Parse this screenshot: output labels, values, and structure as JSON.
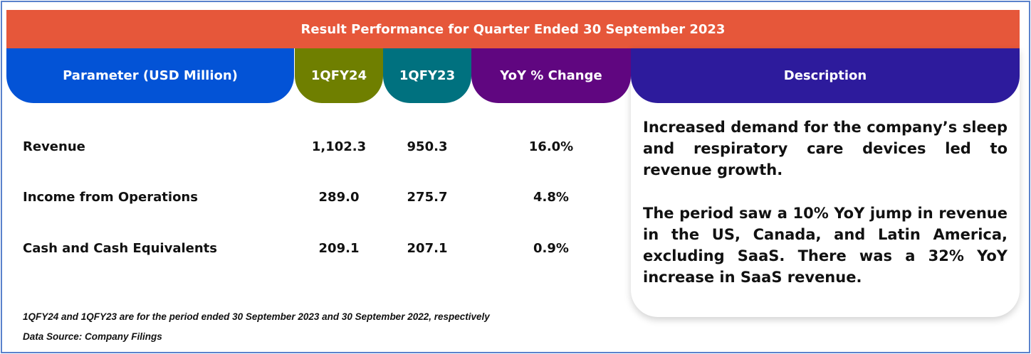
{
  "title": "Result Performance for Quarter Ended 30 September 2023",
  "headers": {
    "parameter": "Parameter (USD Million)",
    "fy24": "1QFY24",
    "fy23": "1QFY23",
    "yoy": "YoY % Change",
    "description": "Description"
  },
  "rows": [
    {
      "label": "Revenue",
      "fy24": "1,102.3",
      "fy23": "950.3",
      "yoy": "16.0%"
    },
    {
      "label": "Income from Operations",
      "fy24": "289.0",
      "fy23": "275.7",
      "yoy": "4.8%"
    },
    {
      "label": "Cash and Cash Equivalents",
      "fy24": "209.1",
      "fy23": "207.1",
      "yoy": "0.9%"
    }
  ],
  "description": {
    "p1": "Increased demand for the company’s sleep and respiratory care devices led to revenue growth.",
    "p2": "The period saw a 10% YoY jump in revenue in the US, Canada, and Latin America, excluding SaaS. There was a 32% YoY increase in SaaS revenue."
  },
  "footnotes": {
    "note": "1QFY24 and 1QFY23 are for the period ended 30 September 2023 and 30 September 2022, respectively",
    "source": "Data Source: Company Filings"
  },
  "colors": {
    "banner": "#e6573a",
    "parameter": "#0353d6",
    "fy24": "#6f7f00",
    "fy23": "#00717f",
    "yoy": "#600680",
    "description": "#2d1b9c",
    "frame": "#5a82cc"
  }
}
